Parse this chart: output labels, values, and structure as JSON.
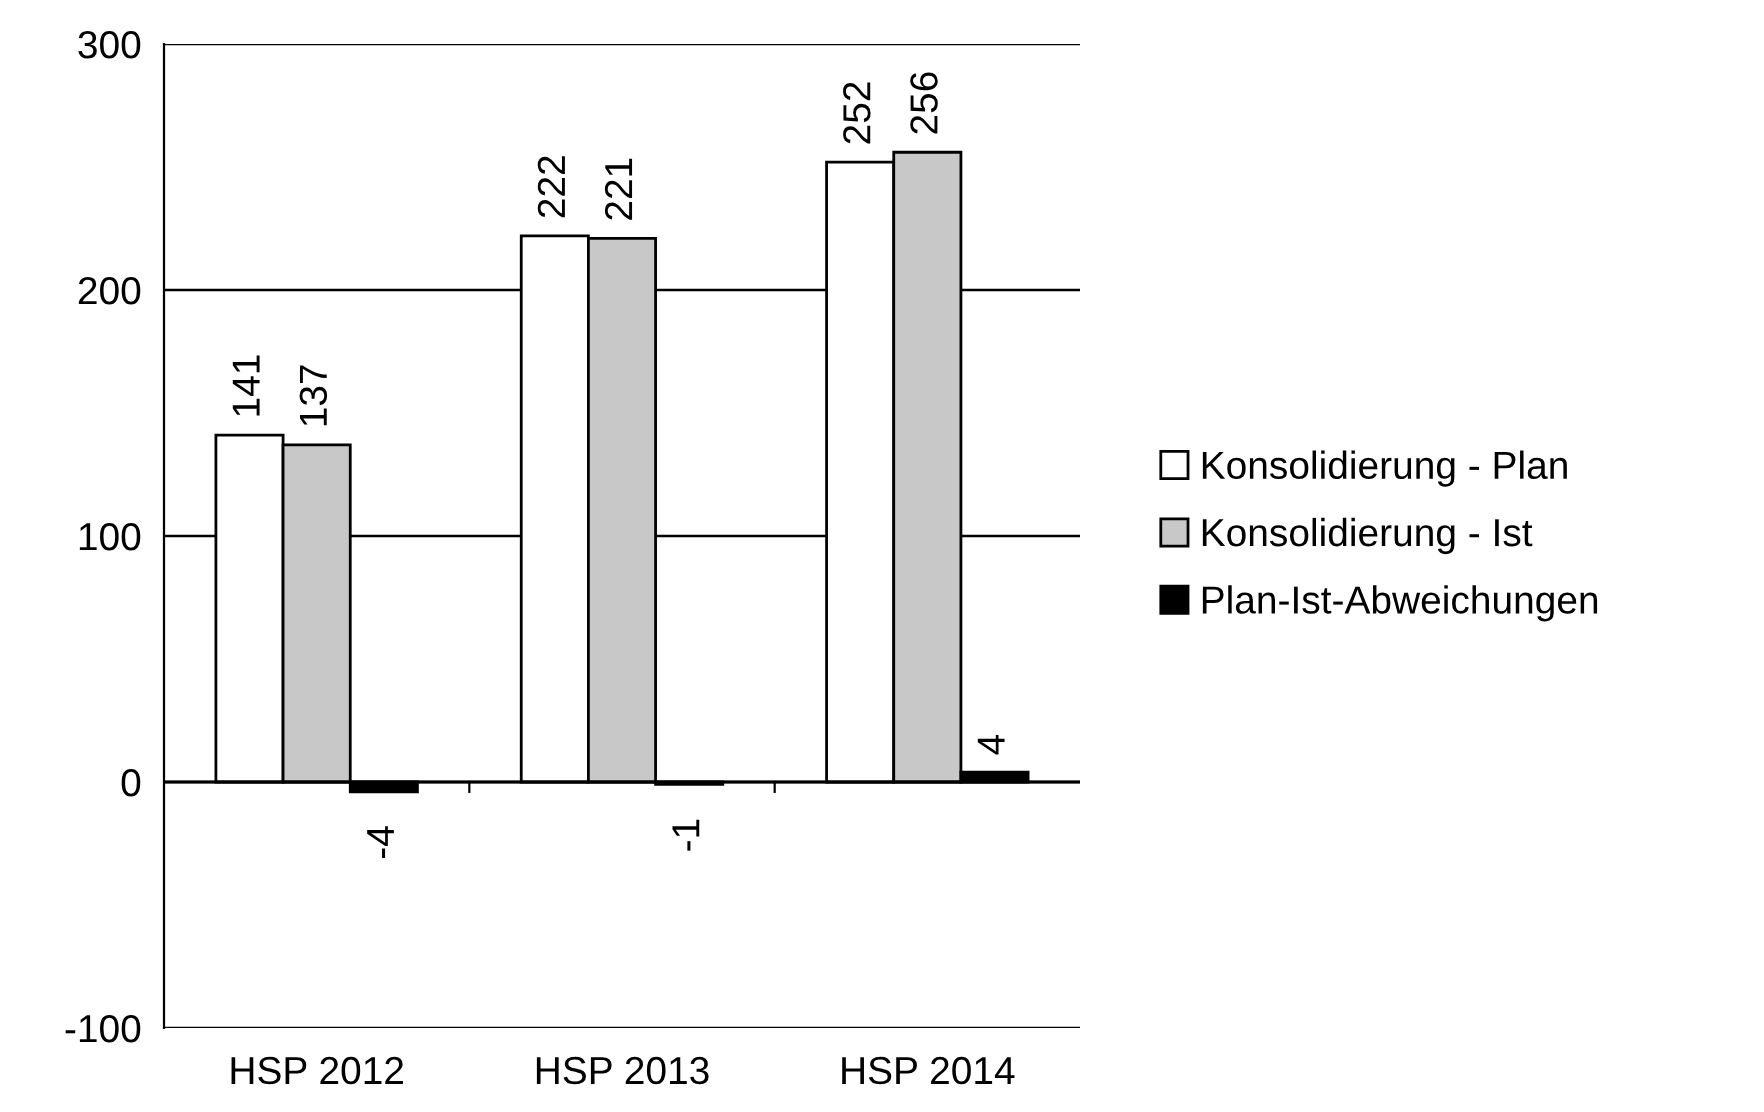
{
  "chart_data": {
    "type": "bar",
    "categories": [
      "HSP 2012",
      "HSP 2013",
      "HSP 2014"
    ],
    "series": [
      {
        "name": "Konsolidierung - Plan",
        "color": "#ffffff",
        "values": [
          141,
          222,
          252
        ]
      },
      {
        "name": "Konsolidierung - Ist",
        "color": "#c8c8c8",
        "values": [
          137,
          221,
          256
        ]
      },
      {
        "name": "Plan-Ist-Abweichungen",
        "color": "#000000",
        "values": [
          -4,
          -1,
          4
        ]
      }
    ],
    "ylim": [
      -100,
      300
    ],
    "yticks": [
      -100,
      0,
      100,
      200,
      300
    ],
    "grid": "y",
    "legend": "right",
    "data_labels": true
  }
}
